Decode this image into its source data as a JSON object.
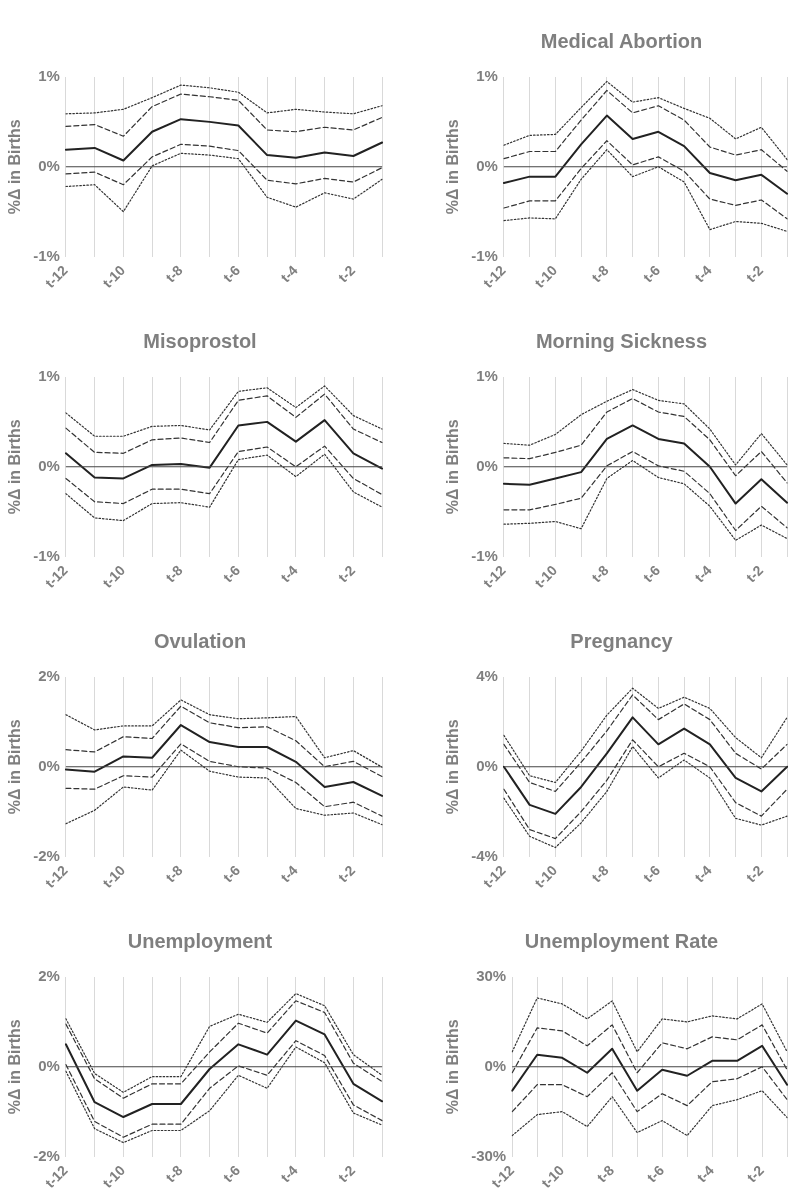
{
  "chart_data": [
    {
      "type": "line",
      "ylabel": "%Δ in Births",
      "categories": [
        "t-12",
        null,
        "t-10",
        null,
        "t-8",
        null,
        "t-6",
        null,
        "t-4",
        null,
        "t-2",
        null
      ],
      "ylim": [
        -1,
        1
      ],
      "yticks": [
        {
          "value": -1,
          "label": "-1%"
        },
        {
          "value": 0,
          "label": "0%"
        },
        {
          "value": 1,
          "label": "1%"
        }
      ],
      "grid": "x",
      "legend": false,
      "marker": "none",
      "ref_lines": [
        {
          "axis": "y",
          "value": 0
        }
      ],
      "series": [
        {
          "color": "#333333",
          "line_style": "dotted",
          "values": [
            0.59,
            0.6,
            0.64,
            0.77,
            0.91,
            0.88,
            0.83,
            0.6,
            0.64,
            0.61,
            0.59,
            0.68
          ]
        },
        {
          "color": "#333333",
          "line_style": "dashed",
          "values": [
            0.45,
            0.47,
            0.34,
            0.67,
            0.81,
            0.78,
            0.74,
            0.41,
            0.39,
            0.44,
            0.41,
            0.55
          ]
        },
        {
          "color": "#222222",
          "line_style": "solid",
          "values": [
            0.19,
            0.21,
            0.07,
            0.39,
            0.53,
            0.5,
            0.46,
            0.13,
            0.1,
            0.16,
            0.12,
            0.27
          ]
        },
        {
          "color": "#333333",
          "line_style": "dashed",
          "values": [
            -0.08,
            -0.06,
            -0.2,
            0.11,
            0.25,
            0.23,
            0.18,
            -0.15,
            -0.19,
            -0.13,
            -0.17,
            -0.01
          ]
        },
        {
          "color": "#333333",
          "line_style": "dotted",
          "values": [
            -0.22,
            -0.2,
            -0.5,
            0.01,
            0.15,
            0.13,
            0.09,
            -0.34,
            -0.45,
            -0.29,
            -0.36,
            -0.14
          ]
        }
      ]
    },
    {
      "type": "line",
      "title": "Medical Abortion",
      "ylabel": "%Δ in Births",
      "categories": [
        "t-12",
        null,
        "t-10",
        null,
        "t-8",
        null,
        "t-6",
        null,
        "t-4",
        null,
        "t-2",
        null
      ],
      "ylim": [
        -1,
        1
      ],
      "yticks": [
        {
          "value": -1,
          "label": "-1%"
        },
        {
          "value": 0,
          "label": "0%"
        },
        {
          "value": 1,
          "label": "1%"
        }
      ],
      "grid": "x",
      "legend": false,
      "marker": "none",
      "ref_lines": [
        {
          "axis": "y",
          "value": 0
        }
      ],
      "series": [
        {
          "color": "#333333",
          "line_style": "dotted",
          "values": [
            0.24,
            0.35,
            0.36,
            0.66,
            0.95,
            0.72,
            0.77,
            0.65,
            0.54,
            0.31,
            0.44,
            0.08
          ]
        },
        {
          "color": "#333333",
          "line_style": "dashed",
          "values": [
            0.09,
            0.17,
            0.17,
            0.52,
            0.85,
            0.6,
            0.68,
            0.52,
            0.22,
            0.13,
            0.19,
            -0.05
          ]
        },
        {
          "color": "#222222",
          "line_style": "solid",
          "values": [
            -0.18,
            -0.11,
            -0.11,
            0.25,
            0.57,
            0.31,
            0.39,
            0.23,
            -0.07,
            -0.15,
            -0.09,
            -0.3
          ]
        },
        {
          "color": "#333333",
          "line_style": "dashed",
          "values": [
            -0.46,
            -0.38,
            -0.38,
            -0.02,
            0.29,
            0.02,
            0.11,
            -0.05,
            -0.36,
            -0.43,
            -0.37,
            -0.58
          ]
        },
        {
          "color": "#333333",
          "line_style": "dotted",
          "values": [
            -0.6,
            -0.57,
            -0.58,
            -0.14,
            0.19,
            -0.11,
            0.0,
            -0.17,
            -0.7,
            -0.61,
            -0.63,
            -0.72
          ]
        }
      ]
    },
    {
      "type": "line",
      "title": "Misoprostol",
      "ylabel": "%Δ in Births",
      "categories": [
        "t-12",
        null,
        "t-10",
        null,
        "t-8",
        null,
        "t-6",
        null,
        "t-4",
        null,
        "t-2",
        null
      ],
      "ylim": [
        -1,
        1
      ],
      "yticks": [
        {
          "value": -1,
          "label": "-1%"
        },
        {
          "value": 0,
          "label": "0%"
        },
        {
          "value": 1,
          "label": "1%"
        }
      ],
      "grid": "x",
      "legend": false,
      "marker": "none",
      "ref_lines": [
        {
          "axis": "y",
          "value": 0
        }
      ],
      "series": [
        {
          "color": "#333333",
          "line_style": "dotted",
          "values": [
            0.6,
            0.34,
            0.34,
            0.45,
            0.46,
            0.41,
            0.84,
            0.88,
            0.66,
            0.9,
            0.57,
            0.42
          ]
        },
        {
          "color": "#333333",
          "line_style": "dashed",
          "values": [
            0.43,
            0.16,
            0.15,
            0.3,
            0.32,
            0.27,
            0.74,
            0.79,
            0.55,
            0.81,
            0.42,
            0.27
          ]
        },
        {
          "color": "#222222",
          "line_style": "solid",
          "values": [
            0.15,
            -0.12,
            -0.13,
            0.02,
            0.03,
            -0.01,
            0.46,
            0.5,
            0.28,
            0.52,
            0.15,
            -0.02
          ]
        },
        {
          "color": "#333333",
          "line_style": "dashed",
          "values": [
            -0.13,
            -0.39,
            -0.41,
            -0.25,
            -0.25,
            -0.3,
            0.17,
            0.22,
            0.0,
            0.23,
            -0.13,
            -0.31
          ]
        },
        {
          "color": "#333333",
          "line_style": "dotted",
          "values": [
            -0.3,
            -0.57,
            -0.6,
            -0.41,
            -0.4,
            -0.45,
            0.08,
            0.13,
            -0.11,
            0.14,
            -0.28,
            -0.45
          ]
        }
      ]
    },
    {
      "type": "line",
      "title": "Morning Sickness",
      "ylabel": "%Δ in Births",
      "categories": [
        "t-12",
        null,
        "t-10",
        null,
        "t-8",
        null,
        "t-6",
        null,
        "t-4",
        null,
        "t-2",
        null
      ],
      "ylim": [
        -1,
        1
      ],
      "yticks": [
        {
          "value": -1,
          "label": "-1%"
        },
        {
          "value": 0,
          "label": "0%"
        },
        {
          "value": 1,
          "label": "1%"
        }
      ],
      "grid": "x",
      "legend": false,
      "marker": "none",
      "ref_lines": [
        {
          "axis": "y",
          "value": 0
        }
      ],
      "series": [
        {
          "color": "#333333",
          "line_style": "dotted",
          "values": [
            0.26,
            0.24,
            0.36,
            0.58,
            0.73,
            0.86,
            0.74,
            0.7,
            0.42,
            0.02,
            0.37,
            0.02
          ]
        },
        {
          "color": "#333333",
          "line_style": "dashed",
          "values": [
            0.1,
            0.09,
            0.16,
            0.24,
            0.61,
            0.76,
            0.61,
            0.56,
            0.3,
            -0.1,
            0.17,
            -0.18
          ]
        },
        {
          "color": "#222222",
          "line_style": "solid",
          "values": [
            -0.19,
            -0.2,
            -0.13,
            -0.06,
            0.31,
            0.46,
            0.31,
            0.26,
            0.0,
            -0.41,
            -0.14,
            -0.4
          ]
        },
        {
          "color": "#333333",
          "line_style": "dashed",
          "values": [
            -0.48,
            -0.48,
            -0.42,
            -0.35,
            0.01,
            0.17,
            0.01,
            -0.05,
            -0.3,
            -0.71,
            -0.44,
            -0.68
          ]
        },
        {
          "color": "#333333",
          "line_style": "dotted",
          "values": [
            -0.64,
            -0.63,
            -0.61,
            -0.69,
            -0.13,
            0.07,
            -0.12,
            -0.19,
            -0.44,
            -0.82,
            -0.65,
            -0.8
          ]
        }
      ]
    },
    {
      "type": "line",
      "title": "Ovulation",
      "ylabel": "%Δ in Births",
      "categories": [
        "t-12",
        null,
        "t-10",
        null,
        "t-8",
        null,
        "t-6",
        null,
        "t-4",
        null,
        "t-2",
        null
      ],
      "ylim": [
        -2,
        2
      ],
      "yticks": [
        {
          "value": -2,
          "label": "-2%"
        },
        {
          "value": 0,
          "label": "0%"
        },
        {
          "value": 2,
          "label": "2%"
        }
      ],
      "grid": "x",
      "legend": false,
      "marker": "none",
      "ref_lines": [
        {
          "axis": "y",
          "value": 0
        }
      ],
      "series": [
        {
          "color": "#333333",
          "line_style": "dotted",
          "values": [
            1.16,
            0.82,
            0.91,
            0.91,
            1.49,
            1.16,
            1.07,
            1.09,
            1.12,
            0.2,
            0.36,
            -0.01
          ]
        },
        {
          "color": "#333333",
          "line_style": "dashed",
          "values": [
            0.38,
            0.33,
            0.67,
            0.63,
            1.35,
            0.98,
            0.87,
            0.89,
            0.58,
            0.0,
            0.12,
            -0.22
          ]
        },
        {
          "color": "#222222",
          "line_style": "solid",
          "values": [
            -0.06,
            -0.11,
            0.23,
            0.2,
            0.93,
            0.55,
            0.44,
            0.44,
            0.11,
            -0.45,
            -0.34,
            -0.65
          ]
        },
        {
          "color": "#333333",
          "line_style": "dashed",
          "values": [
            -0.48,
            -0.5,
            -0.2,
            -0.23,
            0.51,
            0.12,
            0.0,
            -0.03,
            -0.35,
            -0.89,
            -0.79,
            -1.1
          ]
        },
        {
          "color": "#333333",
          "line_style": "dotted",
          "values": [
            -1.27,
            -0.97,
            -0.45,
            -0.52,
            0.37,
            -0.1,
            -0.23,
            -0.25,
            -0.93,
            -1.08,
            -1.03,
            -1.29
          ]
        }
      ]
    },
    {
      "type": "line",
      "title": "Pregnancy",
      "ylabel": "%Δ in Births",
      "categories": [
        "t-12",
        null,
        "t-10",
        null,
        "t-8",
        null,
        "t-6",
        null,
        "t-4",
        null,
        "t-2",
        null
      ],
      "ylim": [
        -4,
        4
      ],
      "yticks": [
        {
          "value": -4,
          "label": "-4%"
        },
        {
          "value": 0,
          "label": "0%"
        },
        {
          "value": 4,
          "label": "4%"
        }
      ],
      "grid": "x",
      "legend": false,
      "marker": "none",
      "ref_lines": [
        {
          "axis": "y",
          "value": 0
        }
      ],
      "series": [
        {
          "color": "#333333",
          "line_style": "dotted",
          "values": [
            1.4,
            -0.4,
            -0.7,
            0.7,
            2.3,
            3.5,
            2.6,
            3.1,
            2.6,
            1.3,
            0.4,
            2.2
          ]
        },
        {
          "color": "#333333",
          "line_style": "dashed",
          "values": [
            1.0,
            -0.7,
            -1.1,
            0.2,
            1.6,
            3.2,
            2.1,
            2.8,
            2.1,
            0.6,
            -0.1,
            1.0
          ]
        },
        {
          "color": "#222222",
          "line_style": "solid",
          "values": [
            0.0,
            -1.7,
            -2.1,
            -0.9,
            0.6,
            2.2,
            1.0,
            1.7,
            1.0,
            -0.5,
            -1.1,
            0.0
          ]
        },
        {
          "color": "#333333",
          "line_style": "dashed",
          "values": [
            -1.0,
            -2.8,
            -3.2,
            -2.0,
            -0.6,
            1.2,
            0.0,
            0.6,
            0.0,
            -1.6,
            -2.2,
            -1.0
          ]
        },
        {
          "color": "#333333",
          "line_style": "dotted",
          "values": [
            -1.4,
            -3.1,
            -3.6,
            -2.5,
            -1.1,
            0.9,
            -0.5,
            0.3,
            -0.5,
            -2.3,
            -2.6,
            -2.2
          ]
        }
      ]
    },
    {
      "type": "line",
      "title": "Unemployment",
      "ylabel": "%Δ in Births",
      "categories": [
        "t-12",
        null,
        "t-10",
        null,
        "t-8",
        null,
        "t-6",
        null,
        "t-4",
        null,
        "t-2",
        null
      ],
      "ylim": [
        -2,
        2
      ],
      "yticks": [
        {
          "value": -2,
          "label": "-2%"
        },
        {
          "value": 0,
          "label": "0%"
        },
        {
          "value": 2,
          "label": "2%"
        }
      ],
      "grid": "x",
      "legend": false,
      "marker": "none",
      "ref_lines": [
        {
          "axis": "y",
          "value": 0
        }
      ],
      "series": [
        {
          "color": "#333333",
          "line_style": "dotted",
          "values": [
            1.07,
            -0.15,
            -0.57,
            -0.22,
            -0.22,
            0.9,
            1.17,
            0.99,
            1.63,
            1.36,
            0.27,
            -0.19
          ]
        },
        {
          "color": "#333333",
          "line_style": "dashed",
          "values": [
            0.95,
            -0.27,
            -0.7,
            -0.38,
            -0.38,
            0.33,
            0.97,
            0.75,
            1.47,
            1.21,
            0.08,
            -0.33
          ]
        },
        {
          "color": "#222222",
          "line_style": "solid",
          "values": [
            0.5,
            -0.79,
            -1.12,
            -0.83,
            -0.83,
            -0.05,
            0.5,
            0.27,
            1.03,
            0.72,
            -0.38,
            -0.77
          ]
        },
        {
          "color": "#333333",
          "line_style": "dashed",
          "values": [
            0.05,
            -1.22,
            -1.57,
            -1.28,
            -1.28,
            -0.48,
            0.02,
            -0.19,
            0.58,
            0.25,
            -0.85,
            -1.2
          ]
        },
        {
          "color": "#333333",
          "line_style": "dotted",
          "values": [
            -0.1,
            -1.38,
            -1.69,
            -1.42,
            -1.42,
            -0.98,
            -0.19,
            -0.48,
            0.44,
            0.09,
            -1.03,
            -1.3
          ]
        }
      ]
    },
    {
      "type": "line",
      "title": "Unemployment Rate",
      "ylabel": "%Δ in Births",
      "categories": [
        "t-12",
        null,
        "t-10",
        null,
        "t-8",
        null,
        "t-6",
        null,
        "t-4",
        null,
        "t-2",
        null
      ],
      "ylim": [
        -30,
        30
      ],
      "yticks": [
        {
          "value": -30,
          "label": "-30%"
        },
        {
          "value": 0,
          "label": "0%"
        },
        {
          "value": 30,
          "label": "30%"
        }
      ],
      "grid": "x",
      "legend": false,
      "marker": "none",
      "ref_lines": [
        {
          "axis": "y",
          "value": 0
        }
      ],
      "series": [
        {
          "color": "#333333",
          "line_style": "dotted",
          "values": [
            5,
            23,
            21,
            16,
            22,
            5,
            16,
            15,
            17,
            16,
            21,
            5
          ]
        },
        {
          "color": "#333333",
          "line_style": "dashed",
          "values": [
            -2,
            13,
            12,
            7,
            14,
            -2,
            8,
            6,
            10,
            9,
            14,
            -1
          ]
        },
        {
          "color": "#222222",
          "line_style": "solid",
          "values": [
            -8,
            4,
            3,
            -2,
            6,
            -8,
            -1,
            -3,
            2,
            2,
            7,
            -6
          ]
        },
        {
          "color": "#333333",
          "line_style": "dashed",
          "values": [
            -15,
            -6,
            -6,
            -10,
            -2,
            -15,
            -9,
            -13,
            -5,
            -4,
            0,
            -11
          ]
        },
        {
          "color": "#333333",
          "line_style": "dotted",
          "values": [
            -23,
            -16,
            -15,
            -20,
            -10,
            -22,
            -18,
            -23,
            -13,
            -11,
            -8,
            -17
          ]
        }
      ]
    }
  ]
}
